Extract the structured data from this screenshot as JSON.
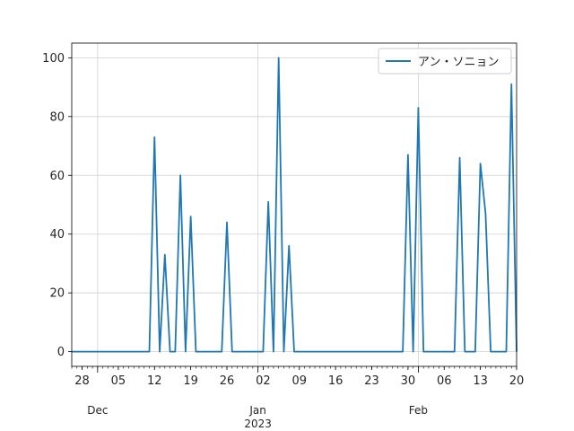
{
  "chart_data": {
    "type": "line",
    "title": "",
    "xlabel": "",
    "ylabel": "",
    "ylim": [
      -5,
      105
    ],
    "xlim": [
      "2022-11-26",
      "2023-02-20"
    ],
    "grid": true,
    "legend": {
      "placement": "top-right",
      "entries": [
        "アン・ソニョン"
      ]
    },
    "colors": {
      "series": "#1f77b4",
      "grid": "#d0d0d0",
      "axes": "#000000"
    },
    "y_ticks": [
      0,
      20,
      40,
      60,
      80,
      100
    ],
    "x_minor_ticks": [
      {
        "date": "2022-11-28",
        "label": "28"
      },
      {
        "date": "2022-12-05",
        "label": "05"
      },
      {
        "date": "2022-12-12",
        "label": "12"
      },
      {
        "date": "2022-12-19",
        "label": "19"
      },
      {
        "date": "2022-12-26",
        "label": "26"
      },
      {
        "date": "2023-01-02",
        "label": "02"
      },
      {
        "date": "2023-01-09",
        "label": "09"
      },
      {
        "date": "2023-01-16",
        "label": "16"
      },
      {
        "date": "2023-01-23",
        "label": "23"
      },
      {
        "date": "2023-01-30",
        "label": "30"
      },
      {
        "date": "2023-02-06",
        "label": "06"
      },
      {
        "date": "2023-02-13",
        "label": "13"
      },
      {
        "date": "2023-02-20",
        "label": "20"
      }
    ],
    "x_major_ticks": [
      {
        "date": "2022-12-01",
        "label": "Dec",
        "sublabel": ""
      },
      {
        "date": "2023-01-01",
        "label": "Jan",
        "sublabel": "2023"
      },
      {
        "date": "2023-02-01",
        "label": "Feb",
        "sublabel": ""
      }
    ],
    "series": [
      {
        "name": "アン・ソニョン",
        "points": [
          [
            "2022-11-26",
            0
          ],
          [
            "2022-12-11",
            0
          ],
          [
            "2022-12-12",
            73
          ],
          [
            "2022-12-13",
            0
          ],
          [
            "2022-12-14",
            33
          ],
          [
            "2022-12-15",
            0
          ],
          [
            "2022-12-16",
            0
          ],
          [
            "2022-12-17",
            60
          ],
          [
            "2022-12-18",
            0
          ],
          [
            "2022-12-19",
            46
          ],
          [
            "2022-12-20",
            0
          ],
          [
            "2022-12-25",
            0
          ],
          [
            "2022-12-26",
            44
          ],
          [
            "2022-12-27",
            0
          ],
          [
            "2023-01-02",
            0
          ],
          [
            "2023-01-03",
            51
          ],
          [
            "2023-01-04",
            0
          ],
          [
            "2023-01-05",
            100
          ],
          [
            "2023-01-06",
            0
          ],
          [
            "2023-01-07",
            36
          ],
          [
            "2023-01-08",
            0
          ],
          [
            "2023-01-29",
            0
          ],
          [
            "2023-01-30",
            67
          ],
          [
            "2023-01-31",
            0
          ],
          [
            "2023-02-01",
            83
          ],
          [
            "2023-02-02",
            0
          ],
          [
            "2023-02-08",
            0
          ],
          [
            "2023-02-09",
            66
          ],
          [
            "2023-02-10",
            0
          ],
          [
            "2023-02-12",
            0
          ],
          [
            "2023-02-13",
            64
          ],
          [
            "2023-02-14",
            47
          ],
          [
            "2023-02-15",
            0
          ],
          [
            "2023-02-18",
            0
          ],
          [
            "2023-02-19",
            91
          ],
          [
            "2023-02-20",
            0
          ]
        ]
      }
    ]
  }
}
